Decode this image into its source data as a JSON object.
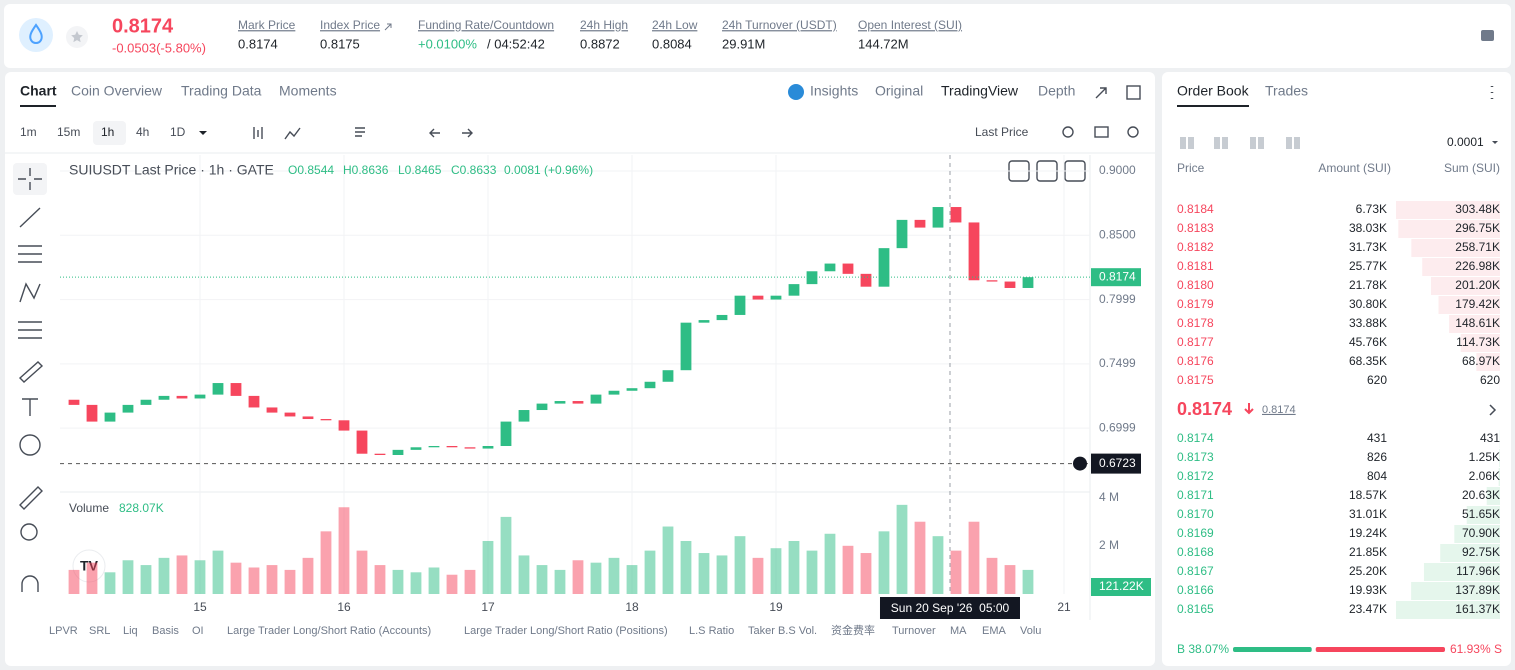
{
  "header": {
    "price": "0.8174",
    "change": "-0.0503(-5.80%)",
    "stats": [
      {
        "label": "Mark Price",
        "value": "0.8174"
      },
      {
        "label": "Index Price",
        "value": "0.8175"
      },
      {
        "label": "Funding Rate/Countdown",
        "value": "+0.0100%",
        "extra": "/ 04:52:42"
      },
      {
        "label": "24h High",
        "value": "0.8872"
      },
      {
        "label": "24h Low",
        "value": "0.8084"
      },
      {
        "label": "24h Turnover (USDT)",
        "value": "29.91M"
      },
      {
        "label": "Open Interest (SUI)",
        "value": "144.72M"
      }
    ]
  },
  "tabs": [
    "Chart",
    "Coin Overview",
    "Trading Data",
    "Moments"
  ],
  "views": [
    "Insights",
    "Original",
    "TradingView",
    "Depth"
  ],
  "intervals": [
    "1m",
    "15m",
    "1h",
    "4h",
    "1D"
  ],
  "price_source": "Last Price",
  "indicators": [
    "LPVR",
    "SRL",
    "Liq",
    "Basis",
    "OI",
    "Large Trader Long/Short Ratio (Accounts)",
    "Large Trader Long/Short Ratio (Positions)",
    "L.S Ratio",
    "Taker B.S Vol.",
    "资金费率",
    "Turnover",
    "MA",
    "EMA",
    "Volu"
  ],
  "chart_data": {
    "type": "candlestick",
    "title": "SUIUSDT Last Price · 1h · GATE",
    "ohlc": [
      "O0.8544",
      "H0.8636",
      "L0.8465",
      "C0.8633",
      "0.0081 (+0.96%)"
    ],
    "open": 0.722,
    "x": [
      14.125,
      14.25,
      14.375,
      14.5,
      14.625,
      14.75,
      14.875,
      15,
      15.125,
      15.25,
      15.375,
      15.5,
      15.625,
      15.75,
      15.875,
      16,
      16.125,
      16.25,
      16.375,
      16.5,
      16.625,
      16.75,
      16.875,
      17,
      17.125,
      17.25,
      17.375,
      17.5,
      17.625,
      17.75,
      17.875,
      18,
      18.125,
      18.25,
      18.375,
      18.5,
      18.625,
      18.75,
      18.875,
      19,
      19.125,
      19.25,
      19.375,
      19.5,
      19.625,
      19.75,
      19.875,
      20,
      20.125,
      20.25,
      20.375,
      20.5,
      20.625,
      20.75
    ],
    "close": [
      0.718,
      0.705,
      0.712,
      0.718,
      0.722,
      0.725,
      0.723,
      0.726,
      0.735,
      0.725,
      0.716,
      0.712,
      0.709,
      0.707,
      0.706,
      0.698,
      0.68,
      0.679,
      0.683,
      0.685,
      0.686,
      0.685,
      0.684,
      0.686,
      0.705,
      0.714,
      0.719,
      0.721,
      0.719,
      0.726,
      0.729,
      0.731,
      0.736,
      0.745,
      0.782,
      0.784,
      0.788,
      0.803,
      0.8,
      0.803,
      0.812,
      0.822,
      0.828,
      0.82,
      0.81,
      0.84,
      0.862,
      0.856,
      0.872,
      0.86,
      0.815,
      0.814,
      0.809,
      0.8174
    ],
    "volume": [
      1.0,
      1.3,
      0.9,
      1.4,
      1.2,
      1.5,
      1.6,
      1.4,
      1.8,
      1.3,
      1.1,
      1.2,
      1.0,
      1.5,
      2.6,
      3.6,
      1.8,
      1.2,
      1.0,
      0.9,
      1.1,
      0.8,
      1.0,
      2.2,
      3.2,
      1.6,
      1.2,
      1.0,
      1.4,
      1.3,
      1.5,
      1.2,
      1.8,
      2.8,
      2.2,
      1.7,
      1.6,
      2.4,
      1.5,
      1.9,
      2.2,
      1.8,
      2.5,
      2.0,
      1.7,
      2.6,
      3.7,
      3.0,
      2.4,
      1.8,
      3.0,
      1.5,
      1.2,
      1.0
    ],
    "up_color": "#2ebd85",
    "down_color": "#f6465d",
    "xlim": [
      14.0278,
      21.1806
    ],
    "xticks": [
      15,
      16,
      17,
      18,
      19,
      21
    ],
    "ylim": [
      0.6502,
      0.9125
    ],
    "yticks": [
      {
        "value": 0.9,
        "label": "0.9000"
      },
      {
        "value": 0.85,
        "label": "0.8500"
      },
      0.7999,
      0.7499,
      0.6999
    ],
    "grid": true,
    "last": 0.8174,
    "crosshair": {
      "x": 20.2083,
      "x_label": "Sun 20 Sep '26  05:00",
      "y": 0.6723
    },
    "volume_title": "Volume",
    "volume_label": "828.07K",
    "volume_last": "121.22K",
    "vlim": [
      0,
      4.15
    ],
    "vticks": [
      {
        "value": 4,
        "label": "4 M"
      },
      {
        "value": 2,
        "label": "2 M"
      }
    ]
  },
  "order_book": {
    "tabs": [
      "Order Book",
      "Trades"
    ],
    "precision": "0.0001",
    "headers": [
      "Price",
      "Amount (SUI)",
      "Sum (SUI)"
    ],
    "asks": {
      "prices": [
        "0.8184",
        "0.8183",
        "0.8182",
        "0.8181",
        "0.8180",
        "0.8179",
        "0.8178",
        "0.8177",
        "0.8176",
        "0.8175"
      ],
      "amounts": [
        "6.73K",
        "38.03K",
        "31.73K",
        "25.77K",
        "21.78K",
        "30.80K",
        "33.88K",
        "45.76K",
        "68.35K",
        "620"
      ],
      "sums": [
        303.48,
        296.75,
        258.71,
        226.98,
        201.2,
        179.42,
        148.61,
        114.73,
        68.97,
        0.62
      ],
      "sum_labels": [
        "303.48K",
        "296.75K",
        "258.71K",
        "226.98K",
        "201.20K",
        "179.42K",
        "148.61K",
        "114.73K",
        "68.97K",
        "620"
      ]
    },
    "mid": {
      "price": "0.8174",
      "mark": "0.8174"
    },
    "bids": {
      "prices": [
        "0.8174",
        "0.8173",
        "0.8172",
        "0.8171",
        "0.8170",
        "0.8169",
        "0.8168",
        "0.8167",
        "0.8166",
        "0.8165"
      ],
      "amounts": [
        "431",
        "826",
        "804",
        "18.57K",
        "31.01K",
        "19.24K",
        "21.85K",
        "25.20K",
        "19.93K",
        "23.47K"
      ],
      "sums": [
        0.431,
        1.25,
        2.06,
        20.63,
        51.65,
        70.9,
        92.75,
        117.96,
        137.89,
        161.37
      ],
      "sum_labels": [
        "431",
        "1.25K",
        "2.06K",
        "20.63K",
        "51.65K",
        "70.90K",
        "92.75K",
        "117.96K",
        "137.89K",
        "161.37K"
      ]
    },
    "ratio": {
      "buy": 38.07,
      "buy_label": "B 38.07%",
      "sell": 61.93,
      "sell_label": "61.93% S"
    }
  }
}
